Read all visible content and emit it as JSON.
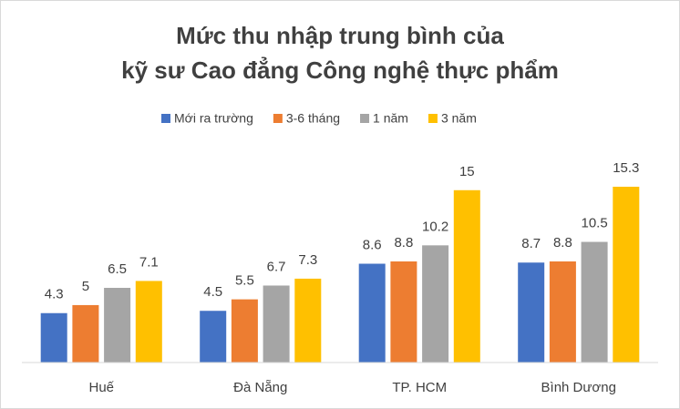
{
  "chart_data": {
    "type": "bar",
    "title": [
      "Mức thu nhập trung bình của",
      "kỹ sư Cao đẳng Công nghệ thực phẩm"
    ],
    "categories": [
      "Huế",
      "Đà Nẵng",
      "TP. HCM",
      "Bình Dương"
    ],
    "series": [
      {
        "name": "Mới ra trường",
        "color": "#4472c4",
        "values": [
          4.3,
          4.5,
          8.6,
          8.7
        ]
      },
      {
        "name": "3-6 tháng",
        "color": "#ed7d31",
        "values": [
          5,
          5.5,
          8.8,
          8.8
        ]
      },
      {
        "name": "1 năm",
        "color": "#a5a5a5",
        "values": [
          6.5,
          6.7,
          10.2,
          10.5
        ]
      },
      {
        "name": "3 năm",
        "color": "#ffc000",
        "values": [
          7.1,
          7.3,
          15,
          15.3
        ]
      }
    ],
    "legend": "top"
  }
}
